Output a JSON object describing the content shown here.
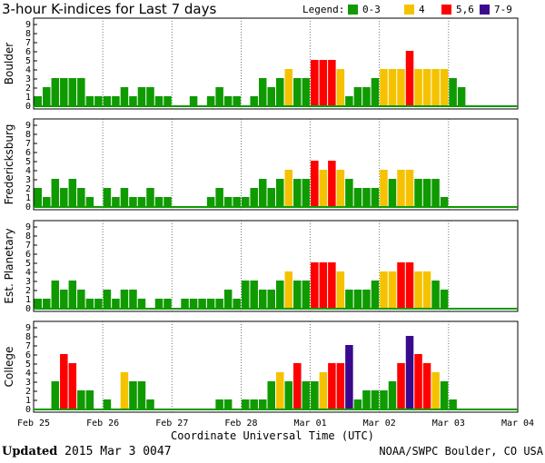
{
  "chart_data": {
    "type": "bar",
    "title": "3-hour K-indices for Last 7 days",
    "legend_label": "Legend:",
    "legend": [
      {
        "label": "0-3",
        "color": "#0f9a00"
      },
      {
        "label": "4",
        "color": "#f5c200"
      },
      {
        "label": "5,6",
        "color": "#ff0000"
      },
      {
        "label": "7-9",
        "color": "#3a0a8c"
      }
    ],
    "y_ticks": [
      "0",
      "1",
      "2",
      "3",
      "4",
      "5",
      "6",
      "7",
      "8",
      "9"
    ],
    "ylim": [
      0,
      9
    ],
    "x_ticks": [
      "Feb 25",
      "Feb 26",
      "Feb 27",
      "Feb 28",
      "Mar 01",
      "Mar 02",
      "Mar 03",
      "Mar 04"
    ],
    "xlabel": "Coordinate Universal Time (UTC)",
    "panels": [
      {
        "name": "Boulder",
        "values": [
          1,
          2,
          3,
          3,
          3,
          3,
          1,
          1,
          1,
          1,
          2,
          1,
          2,
          2,
          1,
          1,
          0,
          0,
          1,
          0,
          1,
          2,
          1,
          1,
          0,
          1,
          3,
          2,
          3,
          4,
          3,
          3,
          5,
          5,
          5,
          4,
          1,
          2,
          2,
          3,
          4,
          4,
          4,
          6,
          4,
          4,
          4,
          4,
          3,
          2,
          0,
          0,
          0,
          0,
          0,
          0
        ]
      },
      {
        "name": "Fredericksburg",
        "values": [
          2,
          1,
          3,
          2,
          3,
          2,
          1,
          0,
          2,
          1,
          2,
          1,
          1,
          2,
          1,
          1,
          0,
          0,
          0,
          0,
          1,
          2,
          1,
          1,
          1,
          2,
          3,
          2,
          3,
          4,
          3,
          3,
          5,
          4,
          5,
          4,
          3,
          2,
          2,
          2,
          4,
          3,
          4,
          4,
          3,
          3,
          3,
          1,
          0,
          0,
          0,
          0,
          0,
          0,
          0,
          0
        ]
      },
      {
        "name": "Est. Planetary",
        "values": [
          1,
          1,
          3,
          2,
          3,
          2,
          1,
          1,
          2,
          1,
          2,
          2,
          1,
          0,
          1,
          1,
          0,
          1,
          1,
          1,
          1,
          1,
          2,
          1,
          3,
          3,
          2,
          2,
          3,
          4,
          3,
          3,
          5,
          5,
          5,
          4,
          2,
          2,
          2,
          3,
          4,
          4,
          5,
          5,
          4,
          4,
          3,
          2,
          0,
          0,
          0,
          0,
          0,
          0,
          0,
          0
        ]
      },
      {
        "name": "College",
        "values": [
          0,
          0,
          3,
          6,
          5,
          2,
          2,
          0,
          1,
          0,
          4,
          3,
          3,
          1,
          0,
          0,
          0,
          0,
          0,
          0,
          0,
          1,
          1,
          0,
          1,
          1,
          1,
          3,
          4,
          3,
          5,
          3,
          3,
          4,
          5,
          5,
          7,
          1,
          2,
          2,
          2,
          3,
          5,
          8,
          6,
          5,
          4,
          3,
          1,
          0,
          0,
          0,
          0,
          0,
          0,
          0
        ]
      }
    ]
  },
  "footer": {
    "updated_label": "Updated",
    "updated_value": "2015 Mar  3 0047",
    "source": "NOAA/SWPC Boulder, CO USA"
  }
}
